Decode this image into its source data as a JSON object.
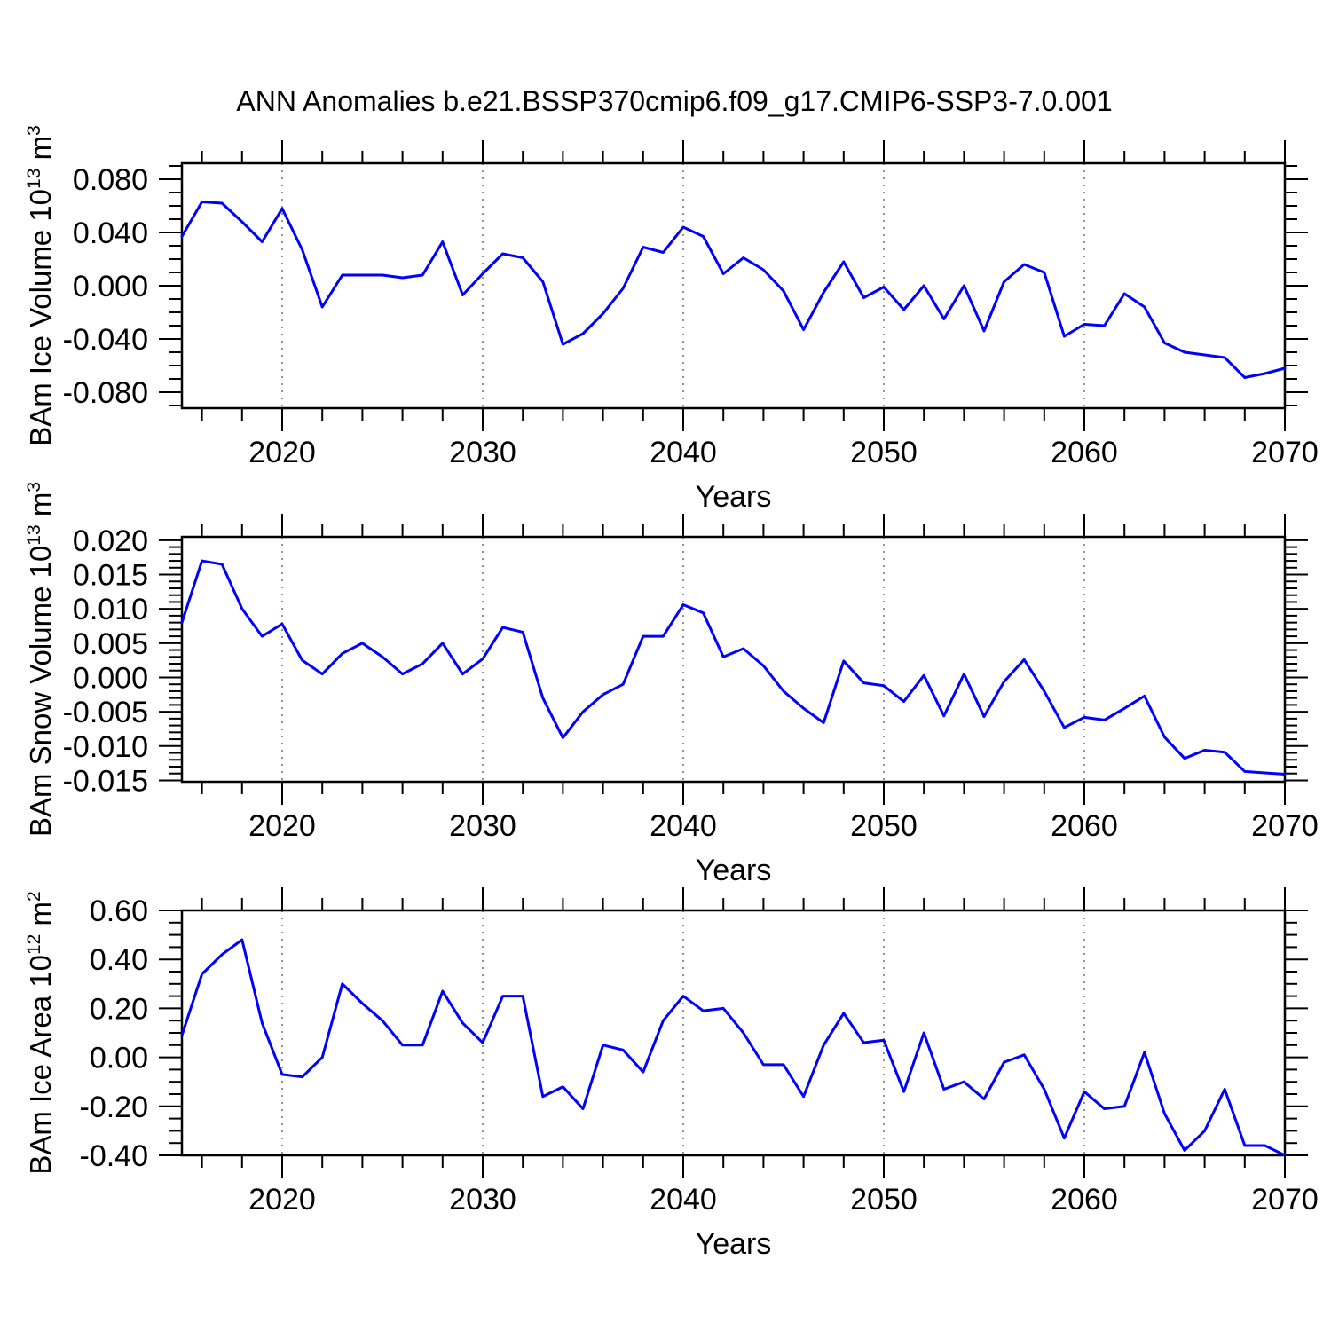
{
  "chart_data": {
    "type": "line",
    "title": "ANN Anomalies b.e21.BSSP370cmip6.f09_g17.CMIP6-SSP3-7.0.001",
    "xlabel": "Years",
    "line_color": "#0000ff",
    "grid_color": "#888888",
    "background": "#ffffff",
    "xlim": [
      2015,
      2070
    ],
    "x_major_ticks": [
      2020,
      2030,
      2040,
      2050,
      2060,
      2070
    ],
    "x_major_labels": [
      "2020",
      "2030",
      "2040",
      "2050",
      "2060",
      "2070"
    ],
    "x_minor_step": 2,
    "x_gridlines": [
      2020,
      2030,
      2040,
      2050,
      2060
    ],
    "x_years": [
      2015,
      2016,
      2017,
      2018,
      2019,
      2020,
      2021,
      2022,
      2023,
      2024,
      2025,
      2026,
      2027,
      2028,
      2029,
      2030,
      2031,
      2032,
      2033,
      2034,
      2035,
      2036,
      2037,
      2038,
      2039,
      2040,
      2041,
      2042,
      2043,
      2044,
      2045,
      2046,
      2047,
      2048,
      2049,
      2050,
      2051,
      2052,
      2053,
      2054,
      2055,
      2056,
      2057,
      2058,
      2059,
      2060,
      2061,
      2062,
      2063,
      2064,
      2065,
      2066,
      2067,
      2068,
      2069,
      2070
    ],
    "panels": [
      {
        "id": "ice-volume",
        "ylabel": {
          "base1": "BAm Ice Volume 10",
          "sup1": "13",
          "base2": " m",
          "sup2": "3"
        },
        "ylim": [
          -0.092,
          0.092
        ],
        "ytick_values": [
          0.08,
          0.04,
          0.0,
          -0.04,
          -0.08
        ],
        "ytick_labels": [
          "0.080",
          "0.040",
          "0.000",
          "-0.040",
          "-0.080"
        ],
        "y_minor_step": 0.01,
        "values": [
          0.037,
          0.063,
          0.062,
          0.048,
          0.033,
          0.058,
          0.027,
          -0.016,
          0.008,
          0.008,
          0.008,
          0.006,
          0.008,
          0.033,
          -0.007,
          0.009,
          0.024,
          0.021,
          0.003,
          -0.044,
          -0.036,
          -0.021,
          -0.002,
          0.029,
          0.025,
          0.044,
          0.037,
          0.009,
          0.021,
          0.012,
          -0.004,
          -0.033,
          -0.005,
          0.018,
          -0.009,
          -0.001,
          -0.018,
          0.0,
          -0.025,
          0.0,
          -0.034,
          0.003,
          0.016,
          0.01,
          -0.038,
          -0.029,
          -0.03,
          -0.006,
          -0.016,
          -0.043,
          -0.05,
          -0.052,
          -0.054,
          -0.069,
          -0.066,
          -0.062
        ]
      },
      {
        "id": "snow-volume",
        "ylabel": {
          "base1": "BAm Snow Volume 10",
          "sup1": "13",
          "base2": " m",
          "sup2": "3"
        },
        "ylim": [
          -0.0152,
          0.0205
        ],
        "ytick_values": [
          0.02,
          0.015,
          0.01,
          0.005,
          0.0,
          -0.005,
          -0.01,
          -0.015
        ],
        "ytick_labels": [
          "0.020",
          "0.015",
          "0.010",
          "0.005",
          "0.000",
          "-0.005",
          "-0.010",
          "-0.015"
        ],
        "y_minor_step": 0.001,
        "values": [
          0.008,
          0.017,
          0.0165,
          0.01,
          0.006,
          0.0078,
          0.0025,
          0.0005,
          0.0035,
          0.005,
          0.003,
          0.0005,
          0.002,
          0.005,
          0.0005,
          0.0027,
          0.0073,
          0.0066,
          -0.003,
          -0.0088,
          -0.005,
          -0.0025,
          -0.001,
          0.006,
          0.006,
          0.0106,
          0.0094,
          0.003,
          0.0042,
          0.0017,
          -0.002,
          -0.0045,
          -0.0066,
          0.0024,
          -0.0008,
          -0.0012,
          -0.0035,
          0.0003,
          -0.0056,
          0.0005,
          -0.0057,
          -0.0006,
          0.0026,
          -0.002,
          -0.0073,
          -0.0058,
          -0.0062,
          -0.0045,
          -0.0027,
          -0.0087,
          -0.0118,
          -0.0106,
          -0.0109,
          -0.0137,
          -0.0139,
          -0.0141
        ]
      },
      {
        "id": "ice-area",
        "ylabel": {
          "base1": "BAm Ice Area 10",
          "sup1": "12",
          "base2": " m",
          "sup2": "2"
        },
        "ylim": [
          -0.4,
          0.6
        ],
        "ytick_values": [
          0.6,
          0.4,
          0.2,
          0.0,
          -0.2,
          -0.4
        ],
        "ytick_labels": [
          "0.60",
          "0.40",
          "0.20",
          "0.00",
          "-0.20",
          "-0.40"
        ],
        "y_minor_step": 0.05,
        "values": [
          0.09,
          0.34,
          0.42,
          0.48,
          0.14,
          -0.07,
          -0.08,
          0.0,
          0.3,
          0.22,
          0.15,
          0.05,
          0.05,
          0.27,
          0.14,
          0.06,
          0.25,
          0.25,
          -0.16,
          -0.12,
          -0.21,
          0.05,
          0.03,
          -0.06,
          0.15,
          0.25,
          0.19,
          0.2,
          0.1,
          -0.03,
          -0.03,
          -0.16,
          0.05,
          0.18,
          0.06,
          0.07,
          -0.14,
          0.1,
          -0.13,
          -0.1,
          -0.17,
          -0.02,
          0.01,
          -0.13,
          -0.33,
          -0.14,
          -0.21,
          -0.2,
          0.02,
          -0.23,
          -0.38,
          -0.3,
          -0.13,
          -0.36,
          -0.36,
          -0.4
        ]
      }
    ]
  }
}
